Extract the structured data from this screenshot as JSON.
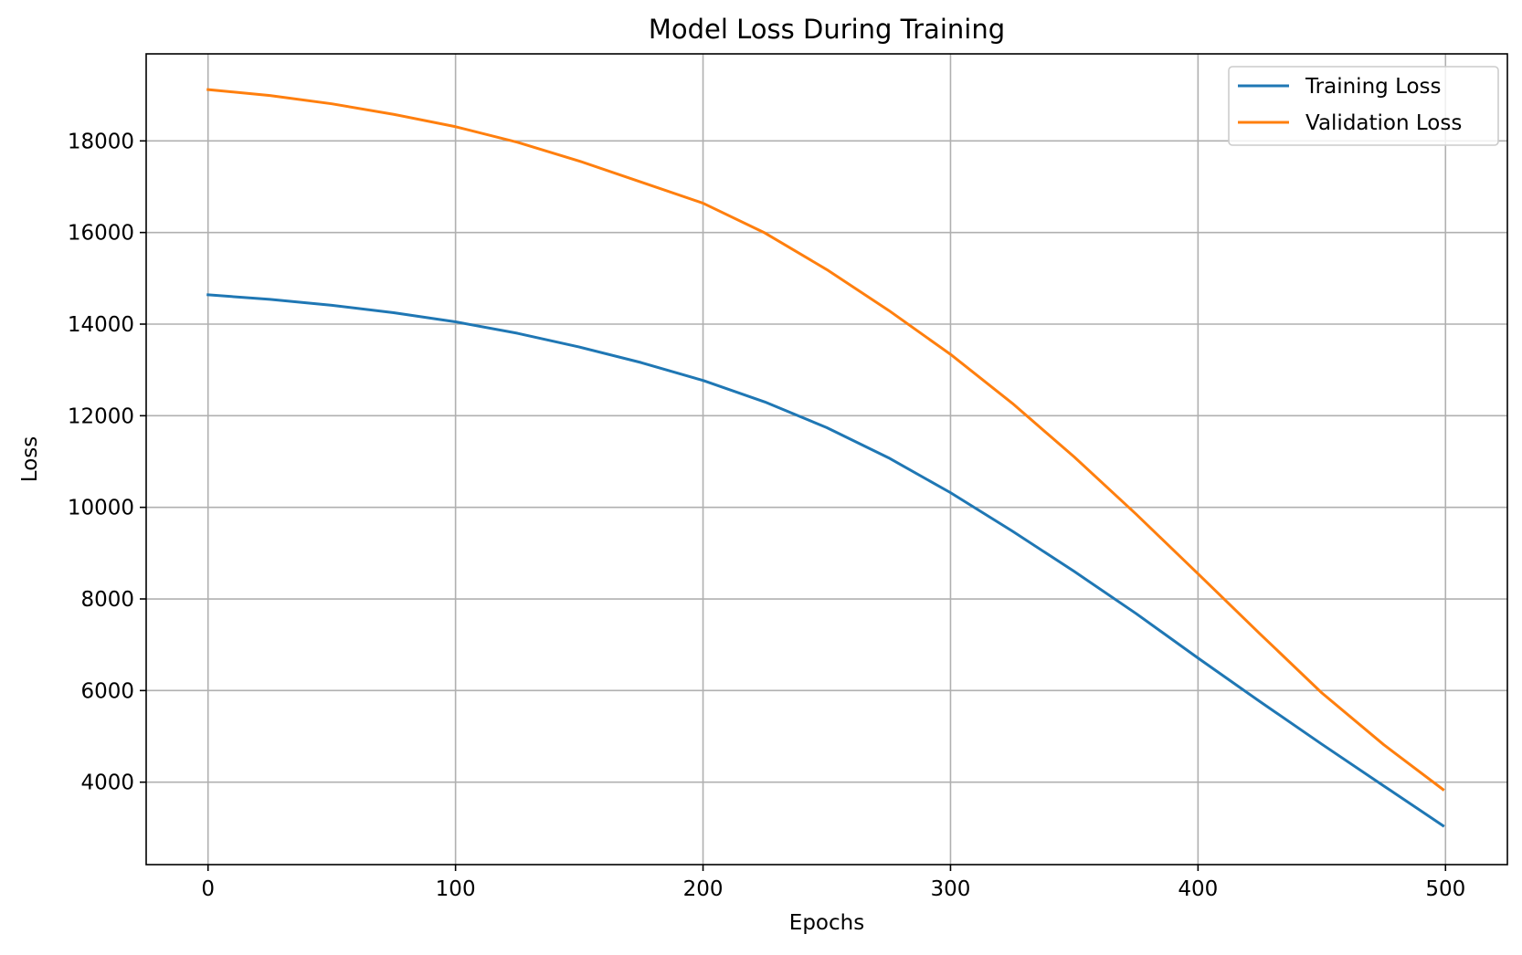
{
  "chart_data": {
    "type": "line",
    "title": "Model Loss During Training",
    "xlabel": "Epochs",
    "ylabel": "Loss",
    "xlim": [
      -25,
      525
    ],
    "ylim": [
      2200,
      19900
    ],
    "xticks": [
      0,
      100,
      200,
      300,
      400,
      500
    ],
    "yticks": [
      4000,
      6000,
      8000,
      10000,
      12000,
      14000,
      16000,
      18000
    ],
    "grid": true,
    "legend_position": "upper right",
    "series": [
      {
        "name": "Training Loss",
        "color": "#1f77b4",
        "x": [
          0,
          25,
          50,
          75,
          100,
          125,
          150,
          175,
          200,
          225,
          250,
          275,
          300,
          325,
          350,
          375,
          400,
          425,
          450,
          475,
          499
        ],
        "values": [
          14640,
          14540,
          14410,
          14250,
          14050,
          13800,
          13500,
          13160,
          12770,
          12300,
          11740,
          11080,
          10320,
          9480,
          8600,
          7680,
          6710,
          5760,
          4830,
          3920,
          3050
        ]
      },
      {
        "name": "Validation Loss",
        "color": "#ff7f0e",
        "x": [
          0,
          25,
          50,
          75,
          100,
          125,
          150,
          175,
          200,
          225,
          250,
          275,
          300,
          325,
          350,
          375,
          400,
          425,
          450,
          475,
          499
        ],
        "values": [
          19120,
          18990,
          18810,
          18580,
          18310,
          17970,
          17560,
          17100,
          16640,
          15990,
          15190,
          14300,
          13340,
          12270,
          11100,
          9850,
          8550,
          7240,
          5950,
          4820,
          3840
        ]
      }
    ]
  }
}
